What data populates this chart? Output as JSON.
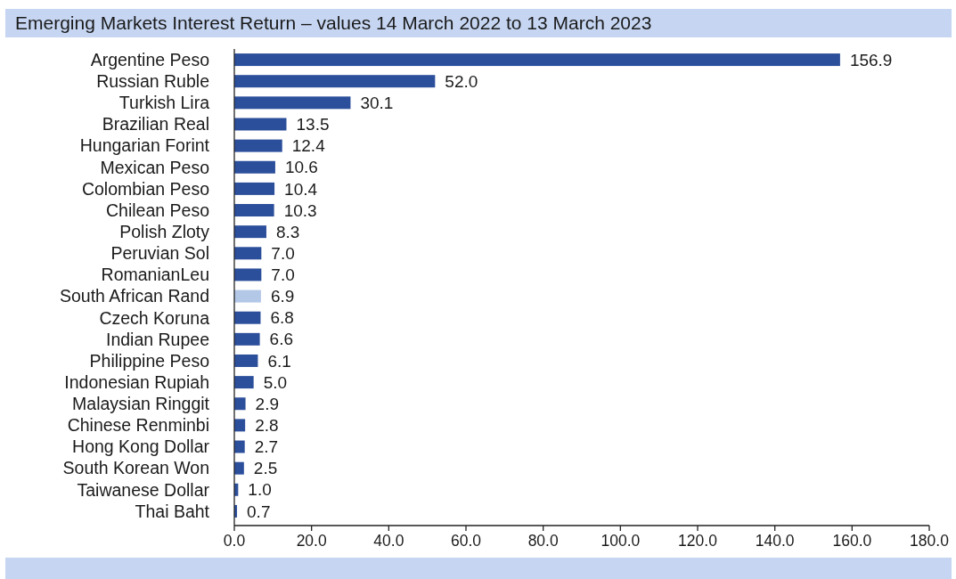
{
  "chart_data": {
    "type": "bar",
    "orientation": "horizontal",
    "title": "Emerging Markets Interest Return – values 14 March 2022 to 13 March 2023",
    "categories": [
      "Argentine Peso",
      "Russian Ruble",
      "Turkish Lira",
      "Brazilian Real",
      "Hungarian Forint",
      "Mexican Peso",
      "Colombian Peso",
      "Chilean Peso",
      "Polish Zloty",
      "Peruvian Sol",
      "RomanianLeu",
      "South African Rand",
      "Czech Koruna",
      "Indian Rupee",
      "Philippine Peso",
      "Indonesian Rupiah",
      "Malaysian Ringgit",
      "Chinese Renminbi",
      "Hong Kong Dollar",
      "South Korean Won",
      "Taiwanese Dollar",
      "Thai Baht"
    ],
    "values": [
      156.9,
      52.0,
      30.1,
      13.5,
      12.4,
      10.6,
      10.4,
      10.3,
      8.3,
      7.0,
      7.0,
      6.9,
      6.8,
      6.6,
      6.1,
      5.0,
      2.9,
      2.8,
      2.7,
      2.5,
      1.0,
      0.7
    ],
    "value_labels": [
      "156.9",
      "52.0",
      "30.1",
      "13.5",
      "12.4",
      "10.6",
      "10.4",
      "10.3",
      "8.3",
      "7.0",
      "7.0",
      "6.9",
      "6.8",
      "6.6",
      "6.1",
      "5.0",
      "2.9",
      "2.8",
      "2.7",
      "2.5",
      "1.0",
      "0.7"
    ],
    "colors": [
      "#2c4f9c",
      "#2c4f9c",
      "#2c4f9c",
      "#2c4f9c",
      "#2c4f9c",
      "#2c4f9c",
      "#2c4f9c",
      "#2c4f9c",
      "#2c4f9c",
      "#2c4f9c",
      "#2c4f9c",
      "#b3c7e7",
      "#2c4f9c",
      "#2c4f9c",
      "#2c4f9c",
      "#2c4f9c",
      "#2c4f9c",
      "#2c4f9c",
      "#2c4f9c",
      "#2c4f9c",
      "#2c4f9c",
      "#2c4f9c"
    ],
    "xlim": [
      0,
      180
    ],
    "xticks": [
      {
        "value": 0,
        "label": "0.0"
      },
      {
        "value": 20,
        "label": "20.0"
      },
      {
        "value": 40,
        "label": "40.0"
      },
      {
        "value": 60,
        "label": "60.0"
      },
      {
        "value": 80,
        "label": "80.0"
      },
      {
        "value": 100,
        "label": "100.0"
      },
      {
        "value": 120,
        "label": "120.0"
      },
      {
        "value": 140,
        "label": "140.0"
      },
      {
        "value": 160,
        "label": "160.0"
      },
      {
        "value": 180,
        "label": "180.0"
      }
    ]
  }
}
